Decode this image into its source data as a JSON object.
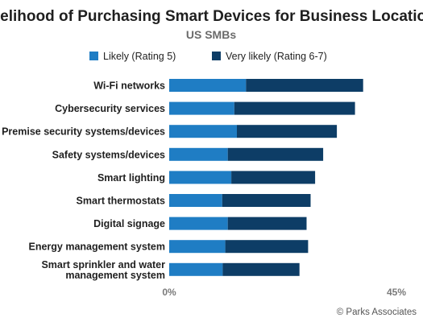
{
  "chart_data": {
    "type": "bar",
    "orientation": "horizontal",
    "stacked": true,
    "title": "Likelihood of Purchasing Smart Devices for Business Locations",
    "subtitle": "US SMBs",
    "categories": [
      "Wi-Fi networks",
      "Cybersecurity services",
      "Premise security systems/devices",
      "Safety systems/devices",
      "Smart lighting",
      "Smart thermostats",
      "Digital signage",
      "Energy management system",
      "Smart sprinkler and water management system"
    ],
    "series": [
      {
        "name": "Likely (Rating 5)",
        "color": "#1f7dc4",
        "values": [
          15.2,
          12.9,
          13.4,
          11.6,
          12.3,
          10.5,
          11.6,
          11.1,
          10.6
        ]
      },
      {
        "name": "Very likely (Rating 6-7)",
        "color": "#0d3d66",
        "values": [
          23.2,
          23.9,
          19.8,
          18.9,
          16.6,
          17.5,
          15.6,
          16.4,
          15.2
        ]
      }
    ],
    "xlim": [
      0,
      45
    ],
    "x_ticks": [
      "0%",
      "45%"
    ],
    "legend_position": "top",
    "grid": false
  },
  "credit": "© Parks Associates"
}
